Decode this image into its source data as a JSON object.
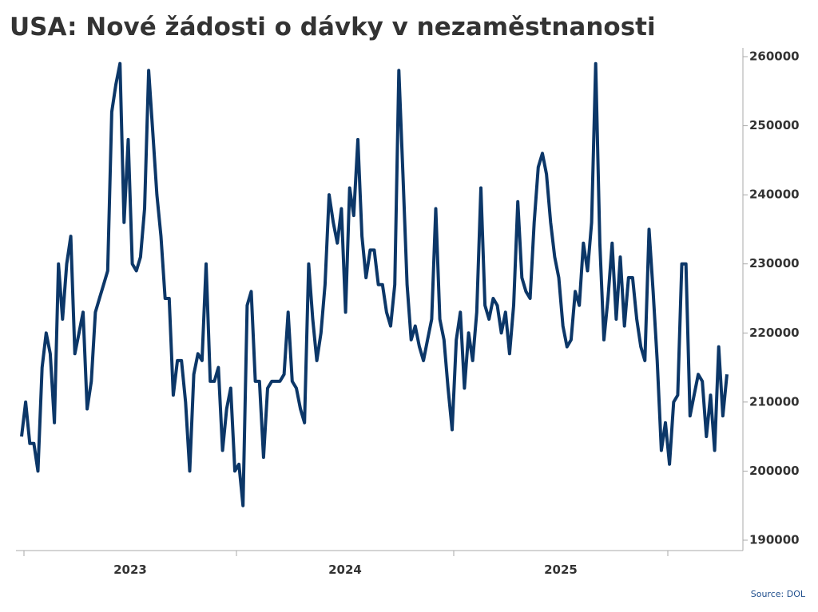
{
  "chart_data": {
    "type": "line",
    "title": "USA: Nové žádosti o dávky v nezaměstnanosti",
    "source": "Source: DOL",
    "year_labels": [
      "2023",
      "2024",
      "2025"
    ],
    "series": [
      {
        "name": "Nové žádosti",
        "color": "#0c3768",
        "values": [
          205000,
          210000,
          204000,
          204000,
          200000,
          215000,
          220000,
          217000,
          207000,
          230000,
          222000,
          230000,
          234000,
          217000,
          220000,
          223000,
          209000,
          213000,
          223000,
          225000,
          227000,
          229000,
          252000,
          256000,
          259000,
          236000,
          248000,
          230000,
          229000,
          231000,
          238000,
          258000,
          249000,
          240000,
          234000,
          225000,
          225000,
          211000,
          216000,
          216000,
          210000,
          200000,
          214000,
          217000,
          216000,
          230000,
          213000,
          213000,
          215000,
          203000,
          209000,
          212000,
          200000,
          201000,
          195000,
          224000,
          226000,
          213000,
          213000,
          202000,
          212000,
          213000,
          213000,
          213000,
          214000,
          223000,
          213000,
          212000,
          209000,
          207000,
          230000,
          222000,
          216000,
          220000,
          227000,
          240000,
          236000,
          233000,
          238000,
          223000,
          241000,
          237000,
          248000,
          234000,
          228000,
          232000,
          232000,
          227000,
          227000,
          223000,
          221000,
          227000,
          258000,
          243000,
          227000,
          219000,
          221000,
          218000,
          216000,
          219000,
          222000,
          238000,
          222000,
          219000,
          212000,
          206000,
          219000,
          223000,
          212000,
          220000,
          216000,
          223000,
          241000,
          224000,
          222000,
          225000,
          224000,
          220000,
          223000,
          217000,
          224000,
          239000,
          228000,
          226000,
          225000,
          236000,
          244000,
          246000,
          243000,
          236000,
          231000,
          228000,
          221000,
          218000,
          219000,
          226000,
          224000,
          233000,
          229000,
          236000,
          259000,
          233000,
          219000,
          225000,
          233000,
          222000,
          231000,
          221000,
          228000,
          228000,
          222000,
          218000,
          216000,
          235000,
          226000,
          216000,
          203000,
          207000,
          201000,
          210000,
          211000,
          230000,
          230000,
          208000,
          211000,
          214000,
          213000,
          205000,
          211000,
          203000,
          218000,
          208000,
          214000
        ]
      }
    ],
    "ylim": [
      190000,
      260000
    ],
    "yticks": [
      190000,
      200000,
      210000,
      220000,
      230000,
      240000,
      250000,
      260000
    ],
    "y_axis_side": "right",
    "grid": false
  }
}
